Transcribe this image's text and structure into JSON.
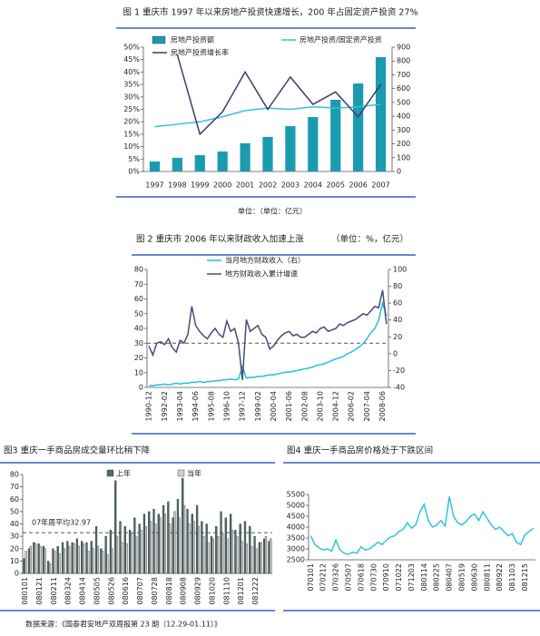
{
  "chart_data": [
    {
      "type": "bar",
      "title": "图 1 重庆市 1997 年以来房地产投资快速增长，200 年占固定资产投资 27%",
      "note": "单位：（单位：亿元）",
      "categories": [
        "1997",
        "1998",
        "1999",
        "2000",
        "2001",
        "2002",
        "2003",
        "2004",
        "2005",
        "2006",
        "2007"
      ],
      "series": [
        {
          "name": "房地产投资额",
          "type": "bar",
          "axis": "y2",
          "color": "#1a9bb0",
          "values": [
            72,
            99,
            118,
            145,
            204,
            250,
            328,
            394,
            519,
            637,
            828
          ]
        },
        {
          "name": "房地产投资/固定资产投资",
          "type": "line",
          "color": "#2ec4e0",
          "values": [
            18,
            19,
            20,
            22,
            24.5,
            25.5,
            25,
            26,
            25.5,
            26,
            27
          ]
        },
        {
          "name": "房地产投资增长率",
          "type": "line",
          "color": "#3d3a6e",
          "values": [
            null,
            47,
            15,
            24,
            40,
            25,
            38,
            27,
            32,
            22,
            35
          ]
        }
      ],
      "ylim": [
        0,
        50
      ],
      "yticks": [
        {
          "value": 0,
          "label": "0%"
        },
        {
          "value": 5,
          "label": "5%"
        },
        {
          "value": 10,
          "label": "10%"
        },
        {
          "value": 15,
          "label": "15%"
        },
        {
          "value": 20,
          "label": "20%"
        },
        {
          "value": 25,
          "label": "25%"
        },
        {
          "value": 30,
          "label": "30%"
        },
        {
          "value": 35,
          "label": "35%"
        },
        {
          "value": 40,
          "label": "40%"
        },
        {
          "value": 45,
          "label": "45%"
        },
        {
          "value": 50,
          "label": "50%"
        }
      ],
      "y2lim": [
        0,
        900
      ],
      "y2ticks": [
        0,
        100,
        200,
        300,
        400,
        500,
        600,
        700,
        800,
        900
      ]
    },
    {
      "type": "line",
      "title": "图 2 重庆市 2006 年以来财政收入加速上涨",
      "subtitle": "（单位：%，亿元）",
      "categories": [
        "1990-12",
        null,
        null,
        null,
        "1992-02",
        null,
        null,
        null,
        "1993-04",
        null,
        null,
        null,
        "1994-06",
        null,
        null,
        null,
        "1995-08",
        null,
        null,
        null,
        "1996-10",
        null,
        null,
        null,
        "1997-12",
        null,
        null,
        null,
        "1999-02",
        null,
        null,
        null,
        "2000-04",
        null,
        null,
        null,
        "2001-06",
        null,
        null,
        null,
        "2002-08",
        null,
        null,
        null,
        "2003-10",
        null,
        null,
        null,
        "2004-12",
        null,
        null,
        null,
        "2006-02",
        null,
        null,
        null,
        "2007-04",
        null,
        null,
        null,
        "2008-06",
        null
      ],
      "series": [
        {
          "name": "当月地方财政收入（右）",
          "axis": "y2",
          "color": "#22c0dd",
          "values": [
            -38,
            -38,
            -37,
            -37,
            -36,
            -37,
            -36,
            -35,
            -36,
            -35,
            -35,
            -34,
            -34,
            -33,
            -34,
            -33,
            -33,
            -32,
            -32,
            -31,
            -31,
            -30,
            -31,
            -30,
            -15,
            -29,
            -28,
            -28,
            -27,
            -27,
            -26,
            -25,
            -25,
            -24,
            -23,
            -22,
            -22,
            -21,
            -20,
            -19,
            -18,
            -17,
            -16,
            -14,
            -13,
            -12,
            -10,
            -8,
            -6,
            -5,
            -3,
            0,
            2,
            5,
            8,
            12,
            18,
            25,
            30,
            40,
            60,
            45
          ]
        },
        {
          "name": "地方财政收入累计增速",
          "color": "#4a4a7a",
          "values": [
            28,
            22,
            30,
            31,
            29,
            33,
            27,
            24,
            32,
            30,
            36,
            55,
            42,
            38,
            35,
            33,
            37,
            40,
            36,
            34,
            45,
            38,
            40,
            30,
            5,
            46,
            38,
            40,
            42,
            36,
            34,
            26,
            28,
            32,
            35,
            37,
            38,
            35,
            36,
            34,
            34,
            36,
            38,
            37,
            40,
            41,
            38,
            39,
            40,
            43,
            42,
            44,
            45,
            46,
            48,
            50,
            49,
            52,
            55,
            54,
            66,
            43
          ]
        }
      ],
      "ref_line": 30,
      "ylim": [
        0,
        80
      ],
      "yticks": [
        0,
        10,
        20,
        30,
        40,
        50,
        60,
        70,
        80
      ],
      "y2lim": [
        -40,
        100
      ],
      "y2ticks": [
        -40,
        -20,
        0,
        20,
        40,
        60,
        80,
        100
      ]
    },
    {
      "type": "bar",
      "title": "图3 重庆一手商品房成交量环比稍下降",
      "categories": [
        "080101",
        null,
        null,
        "080121",
        null,
        null,
        "080211",
        null,
        null,
        "080324",
        null,
        null,
        "080414",
        null,
        null,
        "080505",
        null,
        null,
        "080526",
        null,
        null,
        "080616",
        null,
        null,
        "080707",
        null,
        null,
        "080728",
        null,
        null,
        "080818",
        null,
        null,
        "080908",
        null,
        null,
        "080929",
        null,
        null,
        "081020",
        null,
        null,
        "081110",
        null,
        null,
        "081201",
        null,
        null,
        "081222",
        null,
        null,
        null
      ],
      "series": [
        {
          "name": "上年",
          "color": "#4d6b6b",
          "values": [
            12,
            20,
            25,
            24,
            22,
            10,
            20,
            22,
            25,
            26,
            25,
            28,
            26,
            25,
            26,
            38,
            20,
            30,
            35,
            75,
            42,
            38,
            35,
            45,
            40,
            48,
            50,
            52,
            48,
            55,
            58,
            45,
            60,
            77,
            52,
            48,
            55,
            42,
            40,
            30,
            38,
            50,
            45,
            48,
            35,
            40,
            42,
            38,
            30,
            25,
            28,
            26
          ]
        },
        {
          "name": "当年",
          "color": "#cfcfcf",
          "values": [
            18,
            22,
            24,
            22,
            20,
            8,
            18,
            16,
            20,
            22,
            24,
            22,
            24,
            18,
            20,
            22,
            18,
            15,
            20,
            30,
            25,
            24,
            32,
            30,
            35,
            38,
            42,
            40,
            45,
            48,
            40,
            50,
            45,
            55,
            40,
            42,
            38,
            30,
            25,
            28,
            30,
            32,
            28,
            35,
            30,
            26,
            24,
            22,
            20,
            25,
            30,
            28
          ]
        }
      ],
      "ref_line": {
        "value": 32.97,
        "label": "07年周平均32.97"
      },
      "ylim": [
        0,
        80
      ],
      "yticks": [
        0,
        10,
        20,
        30,
        40,
        50,
        60,
        70,
        80
      ]
    },
    {
      "type": "line",
      "title": "图4 重庆一手商品房价格处于下跌区间",
      "categories": [
        "070101",
        null,
        null,
        "070212",
        null,
        null,
        "070326",
        null,
        null,
        "070507",
        null,
        null,
        "070618",
        null,
        null,
        "070730",
        null,
        null,
        "070910",
        null,
        null,
        "071022",
        null,
        null,
        "071203",
        null,
        null,
        "080114",
        null,
        null,
        "080225",
        null,
        null,
        "080407",
        null,
        null,
        "080519",
        null,
        null,
        "080630",
        null,
        null,
        "080811",
        null,
        null,
        "080922",
        null,
        null,
        "081103",
        null,
        null,
        "081215",
        null,
        null
      ],
      "series": [
        {
          "color": "#33c3dd",
          "values": [
            3600,
            3200,
            3050,
            2950,
            3000,
            2900,
            3400,
            2950,
            2800,
            2750,
            2850,
            2800,
            3100,
            2950,
            3000,
            3150,
            3300,
            3200,
            3400,
            3550,
            3600,
            3800,
            3900,
            4200,
            3950,
            4100,
            4700,
            5050,
            4300,
            4000,
            4100,
            4300,
            4050,
            5400,
            4500,
            4200,
            4100,
            4250,
            4500,
            4600,
            4300,
            4700,
            4400,
            4100,
            3900,
            4000,
            3800,
            3600,
            3700,
            3300,
            3200,
            3650,
            3800,
            3950
          ]
        }
      ],
      "ylim": [
        2500,
        5500
      ],
      "yticks": [
        2500,
        3000,
        3500,
        4000,
        4500,
        5000,
        5500
      ]
    }
  ],
  "footnote": "数据来源：《国泰君安地产双周报第 23 期（12.29-01.11）》"
}
